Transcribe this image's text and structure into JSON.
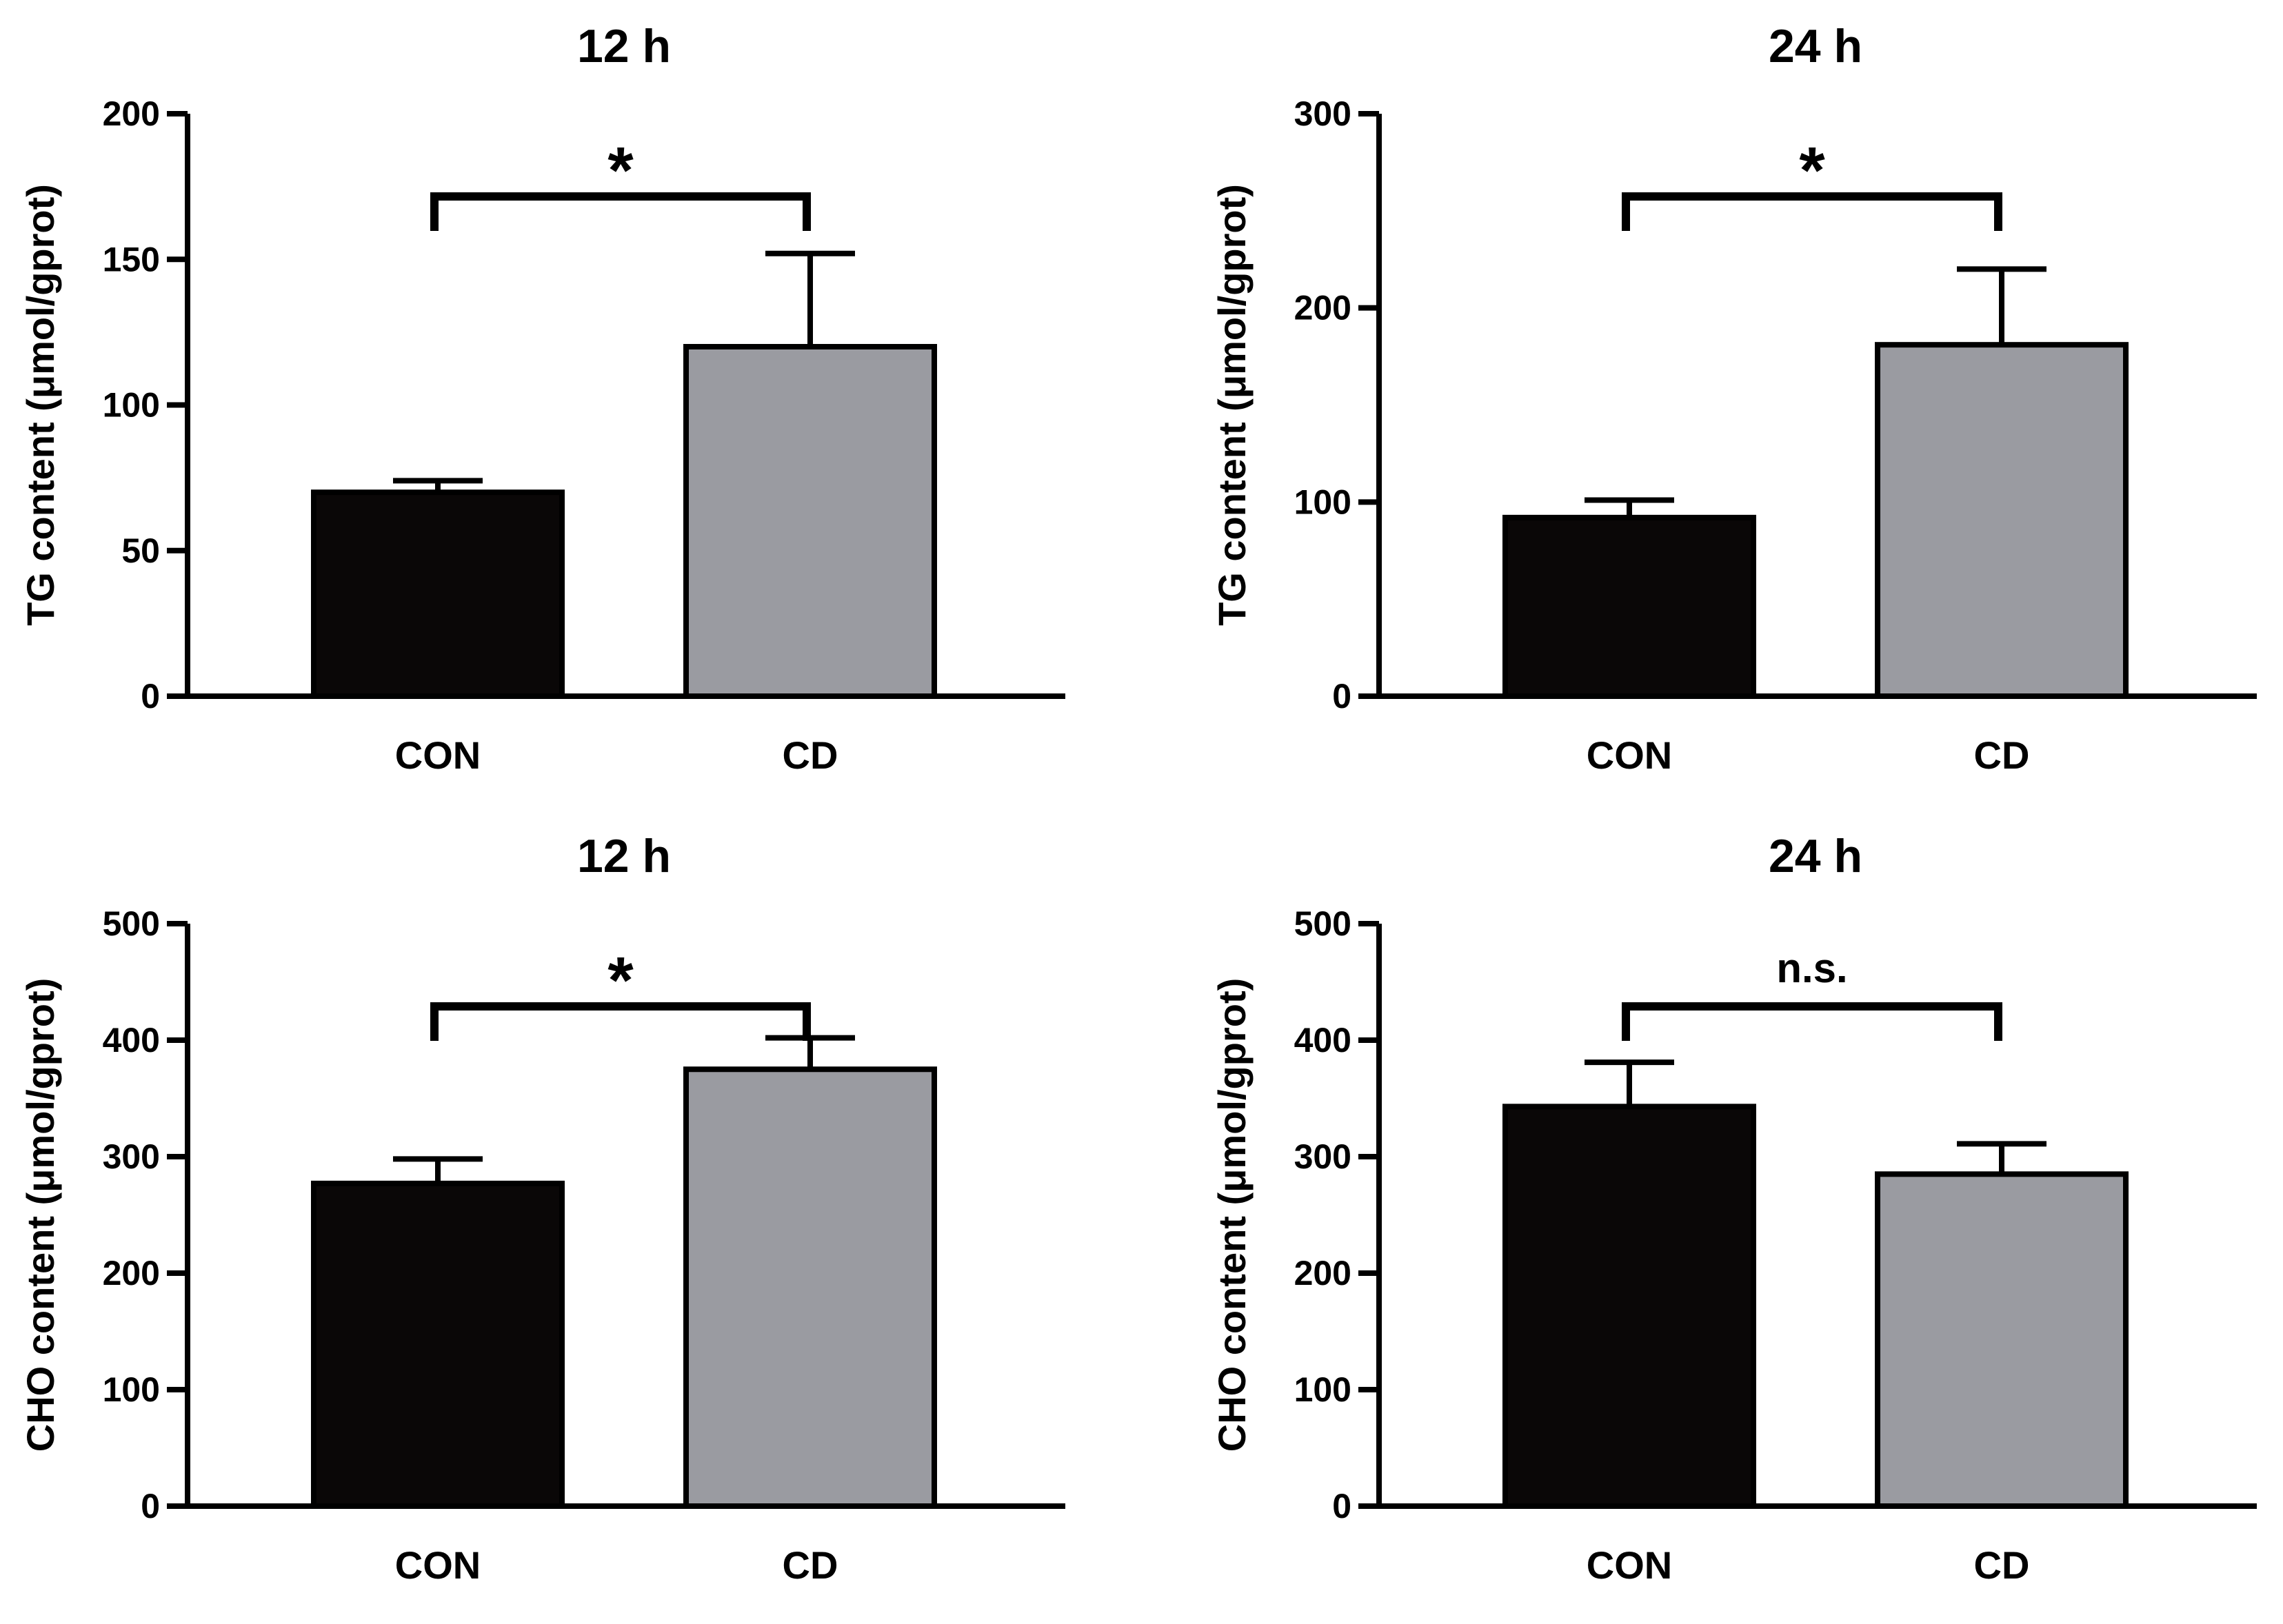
{
  "chart_data": [
    {
      "type": "bar",
      "title": "12 h",
      "xlabel": "",
      "ylabel": "TG content (μmol/gprot)",
      "categories": [
        "CON",
        "CD"
      ],
      "values": [
        70,
        120
      ],
      "errors": [
        4,
        32
      ],
      "colors": [
        "#0a0707",
        "#9a9ba1"
      ],
      "ylim": [
        0,
        200
      ],
      "yticks": [
        0,
        50,
        100,
        150,
        200
      ],
      "significance": "*",
      "grid": false,
      "legend": "none"
    },
    {
      "type": "bar",
      "title": "24 h",
      "xlabel": "",
      "ylabel": "TG content (μmol/gprot)",
      "categories": [
        "CON",
        "CD"
      ],
      "values": [
        92,
        181
      ],
      "errors": [
        9,
        39
      ],
      "colors": [
        "#0a0707",
        "#9a9ba1"
      ],
      "ylim": [
        0,
        300
      ],
      "yticks": [
        0,
        100,
        200,
        300
      ],
      "significance": "*",
      "grid": false,
      "legend": "none"
    },
    {
      "type": "bar",
      "title": "12 h",
      "xlabel": "",
      "ylabel": "CHO content (μmol/gprot)",
      "categories": [
        "CON",
        "CD"
      ],
      "values": [
        277,
        375
      ],
      "errors": [
        21,
        27
      ],
      "colors": [
        "#0a0707",
        "#9a9ba1"
      ],
      "ylim": [
        0,
        500
      ],
      "yticks": [
        0,
        100,
        200,
        300,
        400,
        500
      ],
      "significance": "*",
      "grid": false,
      "legend": "none"
    },
    {
      "type": "bar",
      "title": "24 h",
      "xlabel": "",
      "ylabel": "CHO content (μmol/gprot)",
      "categories": [
        "CON",
        "CD"
      ],
      "values": [
        343,
        285
      ],
      "errors": [
        38,
        26
      ],
      "colors": [
        "#0a0707",
        "#9a9ba1"
      ],
      "ylim": [
        0,
        500
      ],
      "yticks": [
        0,
        100,
        200,
        300,
        400,
        500
      ],
      "significance": "n.s.",
      "grid": false,
      "legend": "none"
    }
  ]
}
